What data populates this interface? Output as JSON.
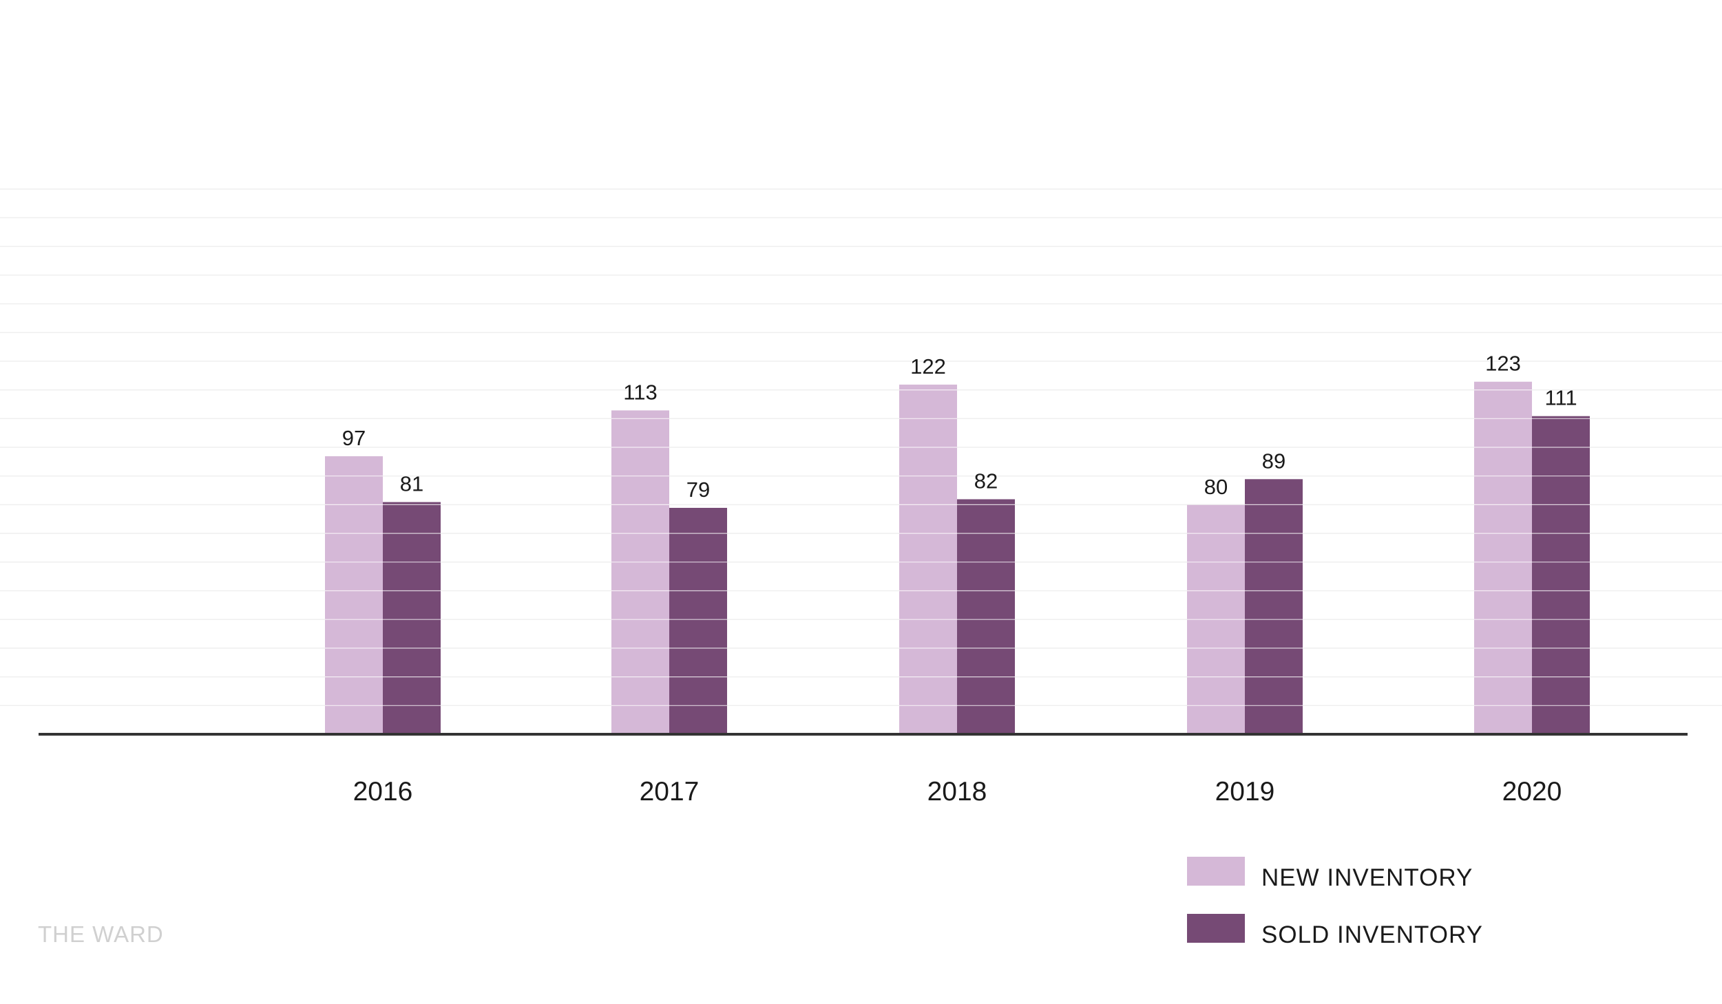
{
  "brand": "THE WARD",
  "colors": {
    "new_inventory": "#d5b8d7",
    "sold_inventory": "#764a75",
    "axis": "#333333",
    "gridline": "#efefef",
    "bar_stripe": "#ffffff"
  },
  "legend": {
    "new_label": "NEW INVENTORY",
    "sold_label": "SOLD INVENTORY",
    "placement": "bottom-right"
  },
  "chart_data": {
    "type": "bar",
    "categories": [
      "2016",
      "2017",
      "2018",
      "2019",
      "2020"
    ],
    "series": [
      {
        "name": "NEW INVENTORY",
        "values": [
          97,
          113,
          122,
          80,
          123
        ],
        "color": "#d5b8d7"
      },
      {
        "name": "SOLD INVENTORY",
        "values": [
          81,
          79,
          82,
          89,
          111
        ],
        "color": "#764a75"
      }
    ],
    "title": "",
    "xlabel": "",
    "ylabel": "",
    "ylim": [
      0,
      200
    ],
    "grid": true,
    "legend_position": "bottom-right"
  }
}
